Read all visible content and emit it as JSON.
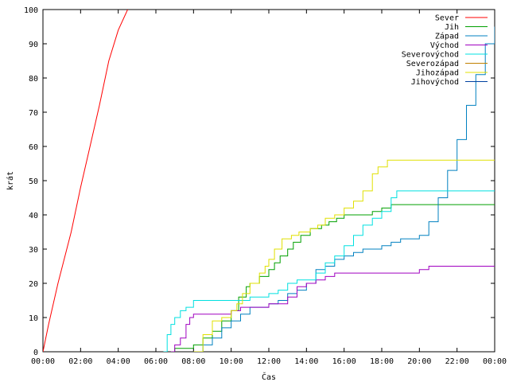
{
  "chart_data": {
    "type": "line",
    "title": "",
    "xlabel": "Čas",
    "ylabel": "krát",
    "xlim": [
      0,
      24
    ],
    "ylim": [
      0,
      100
    ],
    "x_ticks": [
      0,
      2,
      4,
      6,
      8,
      10,
      12,
      14,
      16,
      18,
      20,
      22,
      24
    ],
    "x_tick_labels": [
      "00:00",
      "02:00",
      "04:00",
      "06:00",
      "08:00",
      "10:00",
      "12:00",
      "14:00",
      "16:00",
      "18:00",
      "20:00",
      "22:00",
      "00:00"
    ],
    "y_ticks": [
      0,
      10,
      20,
      30,
      40,
      50,
      60,
      70,
      80,
      90,
      100
    ],
    "y_tick_labels": [
      "0",
      "10",
      "20",
      "30",
      "40",
      "50",
      "60",
      "70",
      "80",
      "90",
      "100"
    ],
    "grid": false,
    "legend_position": "top-right",
    "series": [
      {
        "name": "Sever",
        "color": "#ff0000",
        "step": false,
        "points": [
          [
            0,
            0
          ],
          [
            0.3,
            8
          ],
          [
            0.8,
            20
          ],
          [
            1.5,
            35
          ],
          [
            2.0,
            48
          ],
          [
            2.5,
            60
          ],
          [
            3.0,
            72
          ],
          [
            3.5,
            85
          ],
          [
            4.0,
            94
          ],
          [
            4.5,
            100
          ]
        ]
      },
      {
        "name": "Jih",
        "color": "#00a000",
        "step": true,
        "points": [
          [
            6.8,
            0
          ],
          [
            7.0,
            1
          ],
          [
            8.0,
            2
          ],
          [
            8.5,
            4
          ],
          [
            9.0,
            6
          ],
          [
            9.5,
            9
          ],
          [
            10.0,
            12
          ],
          [
            10.4,
            16
          ],
          [
            10.8,
            19
          ],
          [
            11.0,
            20
          ],
          [
            11.5,
            22
          ],
          [
            12.0,
            24
          ],
          [
            12.3,
            26
          ],
          [
            12.6,
            28
          ],
          [
            13.0,
            30
          ],
          [
            13.3,
            32
          ],
          [
            13.7,
            34
          ],
          [
            14.2,
            36
          ],
          [
            14.8,
            37
          ],
          [
            15.2,
            38
          ],
          [
            15.6,
            39
          ],
          [
            16.0,
            40
          ],
          [
            16.8,
            40
          ],
          [
            17.5,
            41
          ],
          [
            18.0,
            42
          ],
          [
            18.5,
            43
          ],
          [
            24,
            43
          ]
        ]
      },
      {
        "name": "Západ",
        "color": "#0080c0",
        "step": true,
        "points": [
          [
            8.0,
            0
          ],
          [
            8.5,
            2
          ],
          [
            9.0,
            4
          ],
          [
            9.5,
            7
          ],
          [
            10.0,
            9
          ],
          [
            10.5,
            11
          ],
          [
            11.0,
            13
          ],
          [
            12.0,
            14
          ],
          [
            12.5,
            15
          ],
          [
            13.0,
            17
          ],
          [
            13.5,
            18
          ],
          [
            14.0,
            20
          ],
          [
            14.5,
            24
          ],
          [
            15.0,
            25
          ],
          [
            15.5,
            27
          ],
          [
            16.0,
            28
          ],
          [
            16.5,
            29
          ],
          [
            17.0,
            30
          ],
          [
            18.0,
            31
          ],
          [
            18.5,
            32
          ],
          [
            19.0,
            33
          ],
          [
            20.0,
            34
          ],
          [
            20.5,
            38
          ],
          [
            21.0,
            45
          ],
          [
            21.5,
            53
          ],
          [
            22.0,
            62
          ],
          [
            22.5,
            72
          ],
          [
            23.0,
            81
          ],
          [
            23.5,
            90
          ],
          [
            24.0,
            95
          ]
        ]
      },
      {
        "name": "Východ",
        "color": "#a000c0",
        "step": true,
        "points": [
          [
            6.8,
            0
          ],
          [
            7.0,
            2
          ],
          [
            7.3,
            4
          ],
          [
            7.6,
            8
          ],
          [
            7.8,
            10
          ],
          [
            8.0,
            11
          ],
          [
            10.0,
            12
          ],
          [
            10.5,
            13
          ],
          [
            12.0,
            14
          ],
          [
            13.0,
            16
          ],
          [
            13.5,
            19
          ],
          [
            14.0,
            20
          ],
          [
            14.5,
            21
          ],
          [
            15.0,
            22
          ],
          [
            15.5,
            23
          ],
          [
            20.0,
            24
          ],
          [
            20.5,
            25
          ],
          [
            24,
            25
          ]
        ]
      },
      {
        "name": "Severovýchod",
        "color": "#00e0e0",
        "step": true,
        "points": [
          [
            6.4,
            0
          ],
          [
            6.6,
            5
          ],
          [
            6.8,
            8
          ],
          [
            7.0,
            10
          ],
          [
            7.3,
            12
          ],
          [
            7.6,
            13
          ],
          [
            8.0,
            15
          ],
          [
            10.5,
            15
          ],
          [
            11.0,
            16
          ],
          [
            12.0,
            17
          ],
          [
            12.5,
            18
          ],
          [
            13.0,
            20
          ],
          [
            13.5,
            21
          ],
          [
            14.5,
            23
          ],
          [
            15.0,
            26
          ],
          [
            15.5,
            28
          ],
          [
            16.0,
            31
          ],
          [
            16.5,
            34
          ],
          [
            17.0,
            37
          ],
          [
            17.5,
            39
          ],
          [
            18.0,
            41
          ],
          [
            18.5,
            45
          ],
          [
            18.8,
            47
          ],
          [
            24,
            47
          ]
        ]
      },
      {
        "name": "Severozápad",
        "color": "#c08000",
        "step": true,
        "points": []
      },
      {
        "name": "Jihozápad",
        "color": "#e0e000",
        "step": true,
        "points": [
          [
            8.0,
            0
          ],
          [
            8.5,
            5
          ],
          [
            9.0,
            9
          ],
          [
            9.5,
            10
          ],
          [
            10.0,
            12
          ],
          [
            10.3,
            14
          ],
          [
            10.6,
            17
          ],
          [
            11.0,
            20
          ],
          [
            11.5,
            23
          ],
          [
            11.8,
            25
          ],
          [
            12.0,
            27
          ],
          [
            12.3,
            30
          ],
          [
            12.7,
            33
          ],
          [
            13.2,
            34
          ],
          [
            13.6,
            35
          ],
          [
            14.2,
            36
          ],
          [
            14.6,
            37
          ],
          [
            15.0,
            39
          ],
          [
            15.5,
            40
          ],
          [
            16.0,
            42
          ],
          [
            16.5,
            44
          ],
          [
            17.0,
            47
          ],
          [
            17.5,
            52
          ],
          [
            17.8,
            54
          ],
          [
            18.3,
            56
          ],
          [
            24,
            56
          ]
        ]
      },
      {
        "name": "Jihovýchod",
        "color": "#0040a0",
        "step": true,
        "points": []
      }
    ]
  }
}
